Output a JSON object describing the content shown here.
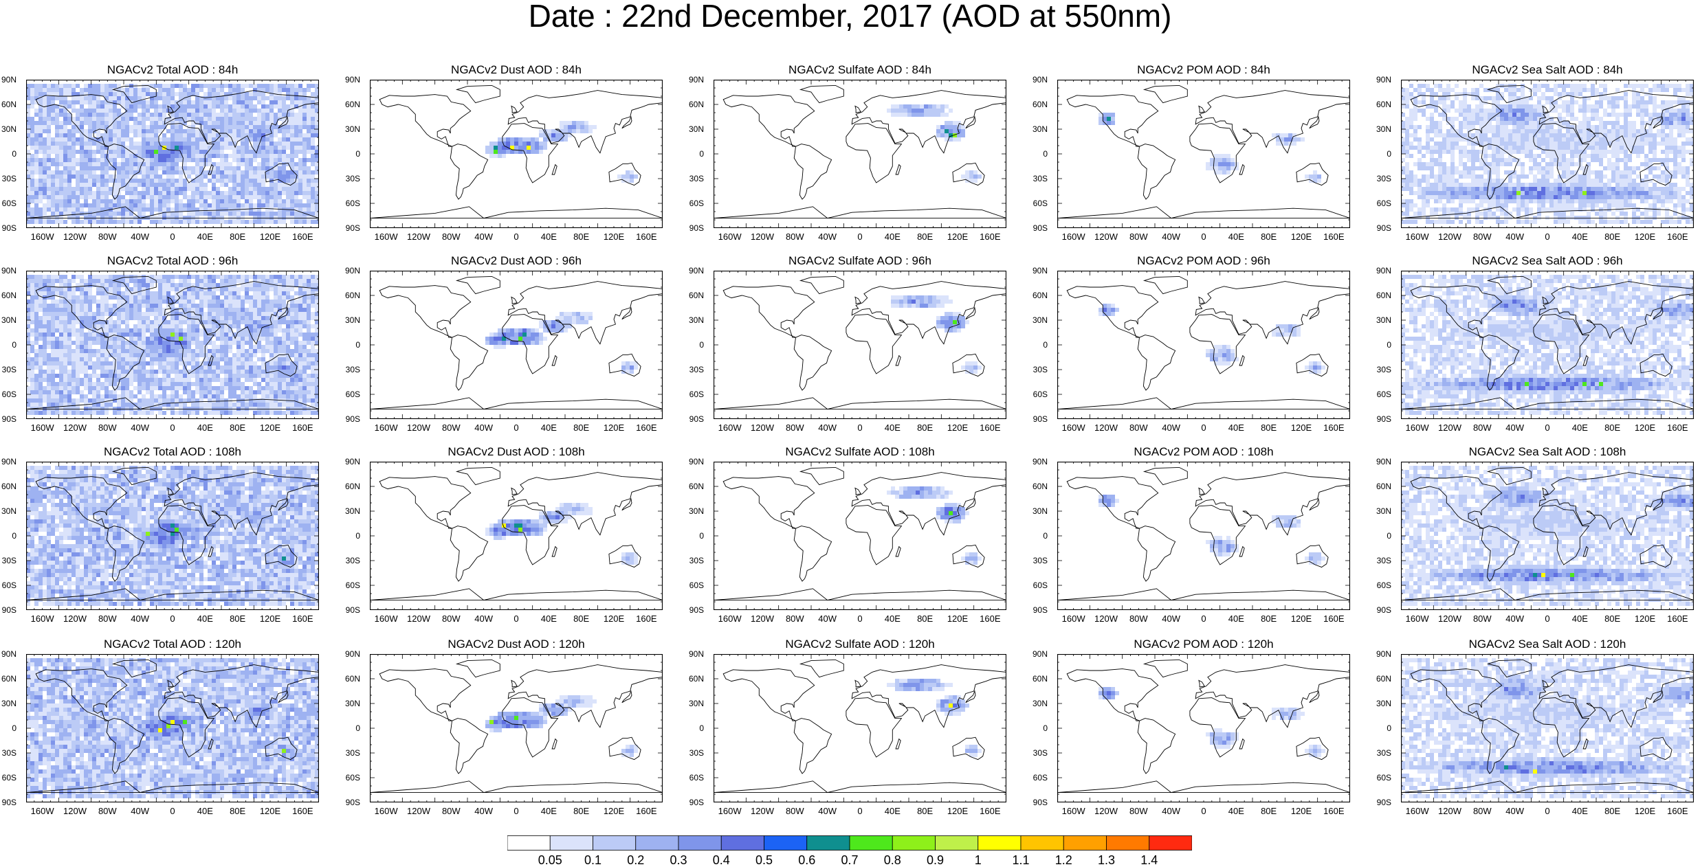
{
  "figure_title": "Date : 22nd December, 2017 (AOD at 550nm)",
  "axis_ticks": {
    "y": [
      "90N",
      "60N",
      "30N",
      "0",
      "30S",
      "60S",
      "90S"
    ],
    "x": [
      "160W",
      "120W",
      "80W",
      "40W",
      "0",
      "40E",
      "80E",
      "120E",
      "160E"
    ]
  },
  "panels": [
    {
      "title": "NGACv2 Total AOD : 84h",
      "product": "total",
      "lead_hours": 84
    },
    {
      "title": "NGACv2 Dust AOD : 84h",
      "product": "dust",
      "lead_hours": 84
    },
    {
      "title": "NGACv2 Sulfate AOD : 84h",
      "product": "sulfate",
      "lead_hours": 84
    },
    {
      "title": "NGACv2 POM AOD : 84h",
      "product": "pom",
      "lead_hours": 84
    },
    {
      "title": "NGACv2 Sea Salt AOD : 84h",
      "product": "seasalt",
      "lead_hours": 84
    },
    {
      "title": "NGACv2 Total AOD : 96h",
      "product": "total",
      "lead_hours": 96
    },
    {
      "title": "NGACv2 Dust AOD : 96h",
      "product": "dust",
      "lead_hours": 96
    },
    {
      "title": "NGACv2 Sulfate AOD : 96h",
      "product": "sulfate",
      "lead_hours": 96
    },
    {
      "title": "NGACv2 POM AOD : 96h",
      "product": "pom",
      "lead_hours": 96
    },
    {
      "title": "NGACv2 Sea Salt AOD : 96h",
      "product": "seasalt",
      "lead_hours": 96
    },
    {
      "title": "NGACv2 Total AOD : 108h",
      "product": "total",
      "lead_hours": 108
    },
    {
      "title": "NGACv2 Dust AOD : 108h",
      "product": "dust",
      "lead_hours": 108
    },
    {
      "title": "NGACv2 Sulfate AOD : 108h",
      "product": "sulfate",
      "lead_hours": 108
    },
    {
      "title": "NGACv2 POM AOD : 108h",
      "product": "pom",
      "lead_hours": 108
    },
    {
      "title": "NGACv2 Sea Salt AOD : 108h",
      "product": "seasalt",
      "lead_hours": 108
    },
    {
      "title": "NGACv2 Total AOD : 120h",
      "product": "total",
      "lead_hours": 120
    },
    {
      "title": "NGACv2 Dust AOD : 120h",
      "product": "dust",
      "lead_hours": 120
    },
    {
      "title": "NGACv2 Sulfate AOD : 120h",
      "product": "sulfate",
      "lead_hours": 120
    },
    {
      "title": "NGACv2 POM AOD : 120h",
      "product": "pom",
      "lead_hours": 120
    },
    {
      "title": "NGACv2 Sea Salt  AOD : 120h",
      "product": "seasalt",
      "lead_hours": 120
    }
  ],
  "colorbar": {
    "labels": [
      "0.05",
      "0.1",
      "0.2",
      "0.3",
      "0.4",
      "0.5",
      "0.6",
      "0.7",
      "0.8",
      "0.9",
      "1",
      "1.1",
      "1.2",
      "1.3",
      "1.4"
    ],
    "colors": [
      "#ffffff",
      "#dbe3fb",
      "#bccbf6",
      "#9eb2f1",
      "#7f95ea",
      "#5f6fe0",
      "#1c63f5",
      "#0f8f8f",
      "#4ee81c",
      "#8ef01a",
      "#bff04a",
      "#ffff00",
      "#ffc400",
      "#ffa000",
      "#ff7a00",
      "#ff2a10"
    ]
  }
}
